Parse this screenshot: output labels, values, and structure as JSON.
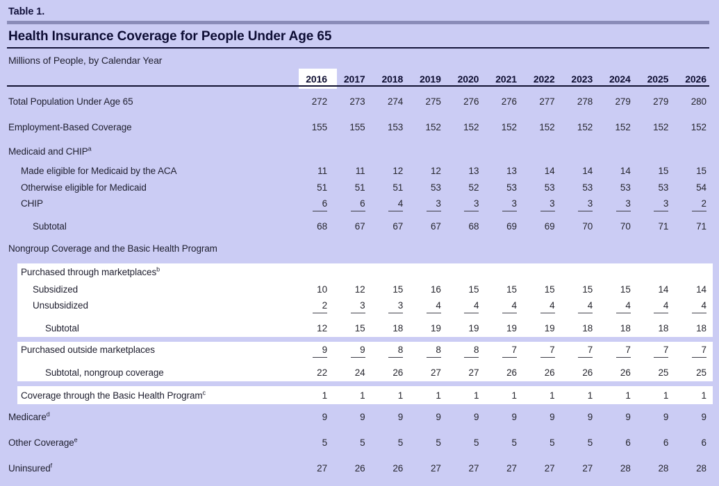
{
  "page": {
    "table_label": "Table 1.",
    "title": "Health Insurance Coverage for People Under Age 65",
    "subtitle": "Millions of People, by Calendar Year"
  },
  "colors": {
    "background": "#cbccf4",
    "accent_rule": "#8a8cb8",
    "dark_rule": "#101030",
    "text": "#1e1e2e",
    "highlight": "#ffffff"
  },
  "table": {
    "years": [
      "2016",
      "2017",
      "2018",
      "2019",
      "2020",
      "2021",
      "2022",
      "2023",
      "2024",
      "2025",
      "2026"
    ],
    "highlighted_year": "2016",
    "groups": [
      {
        "white_box": false,
        "rows": [
          {
            "kind": "main",
            "indent": 0,
            "label": "Total Population Under Age 65",
            "values": [
              272,
              273,
              274,
              275,
              276,
              276,
              277,
              278,
              279,
              279,
              280
            ]
          },
          {
            "kind": "main",
            "indent": 0,
            "label": "Employment-Based Coverage",
            "values": [
              155,
              155,
              153,
              152,
              152,
              152,
              152,
              152,
              152,
              152,
              152
            ]
          },
          {
            "kind": "section",
            "indent": 0,
            "label": "Medicaid and CHIP",
            "sup": "a"
          },
          {
            "kind": "sub",
            "indent": 1,
            "label": "Made eligible for Medicaid by the ACA",
            "values": [
              11,
              11,
              12,
              12,
              13,
              13,
              14,
              14,
              14,
              15,
              15
            ]
          },
          {
            "kind": "sub",
            "indent": 1,
            "label": "Otherwise eligible for Medicaid",
            "values": [
              51,
              51,
              51,
              53,
              52,
              53,
              53,
              53,
              53,
              53,
              54
            ]
          },
          {
            "kind": "sub_ul",
            "indent": 1,
            "label": "CHIP",
            "underline": true,
            "values": [
              6,
              6,
              4,
              3,
              3,
              3,
              3,
              3,
              3,
              3,
              2
            ]
          },
          {
            "kind": "subtotal",
            "indent": 2,
            "label": "Subtotal",
            "values": [
              68,
              67,
              67,
              67,
              68,
              69,
              69,
              70,
              70,
              71,
              71
            ]
          },
          {
            "kind": "section2",
            "indent": 0,
            "label": "Nongroup Coverage and the Basic Health Program"
          }
        ]
      },
      {
        "white_box": true,
        "rows": [
          {
            "kind": "boxhead",
            "indent": 0,
            "label": "Purchased through marketplaces",
            "sup": "b"
          },
          {
            "kind": "sub",
            "indent": 1,
            "label": "Subsidized",
            "values": [
              10,
              12,
              15,
              16,
              15,
              15,
              15,
              15,
              15,
              14,
              14
            ]
          },
          {
            "kind": "sub_ul",
            "indent": 1,
            "label": "Unsubsidized",
            "underline": true,
            "values": [
              2,
              3,
              3,
              4,
              4,
              4,
              4,
              4,
              4,
              4,
              4
            ]
          },
          {
            "kind": "subtotal",
            "indent": 2,
            "label": "Subtotal",
            "values": [
              12,
              15,
              18,
              19,
              19,
              19,
              19,
              18,
              18,
              18,
              18
            ]
          }
        ]
      },
      {
        "white_box": true,
        "rows": [
          {
            "kind": "sub_ul",
            "indent": 0,
            "label": "Purchased outside marketplaces",
            "underline": true,
            "values": [
              9,
              9,
              8,
              8,
              8,
              7,
              7,
              7,
              7,
              7,
              7
            ]
          },
          {
            "kind": "subtotal",
            "indent": 2,
            "label": "Subtotal, nongroup coverage",
            "values": [
              22,
              24,
              26,
              27,
              27,
              26,
              26,
              26,
              26,
              25,
              25
            ]
          }
        ]
      },
      {
        "white_box": true,
        "rows": [
          {
            "kind": "boxrow",
            "indent": 0,
            "label": "Coverage through the Basic Health Program",
            "sup": "c",
            "values": [
              1,
              1,
              1,
              1,
              1,
              1,
              1,
              1,
              1,
              1,
              1
            ]
          }
        ]
      },
      {
        "white_box": false,
        "rows": [
          {
            "kind": "main",
            "indent": 0,
            "label": "Medicare",
            "sup": "d",
            "values": [
              9,
              9,
              9,
              9,
              9,
              9,
              9,
              9,
              9,
              9,
              9
            ]
          },
          {
            "kind": "main",
            "indent": 0,
            "label": "Other Coverage",
            "sup": "e",
            "values": [
              5,
              5,
              5,
              5,
              5,
              5,
              5,
              5,
              6,
              6,
              6
            ]
          },
          {
            "kind": "main",
            "indent": 0,
            "label": "Uninsured",
            "sup": "f",
            "values": [
              27,
              26,
              26,
              27,
              27,
              27,
              27,
              27,
              28,
              28,
              28
            ]
          }
        ]
      }
    ]
  }
}
